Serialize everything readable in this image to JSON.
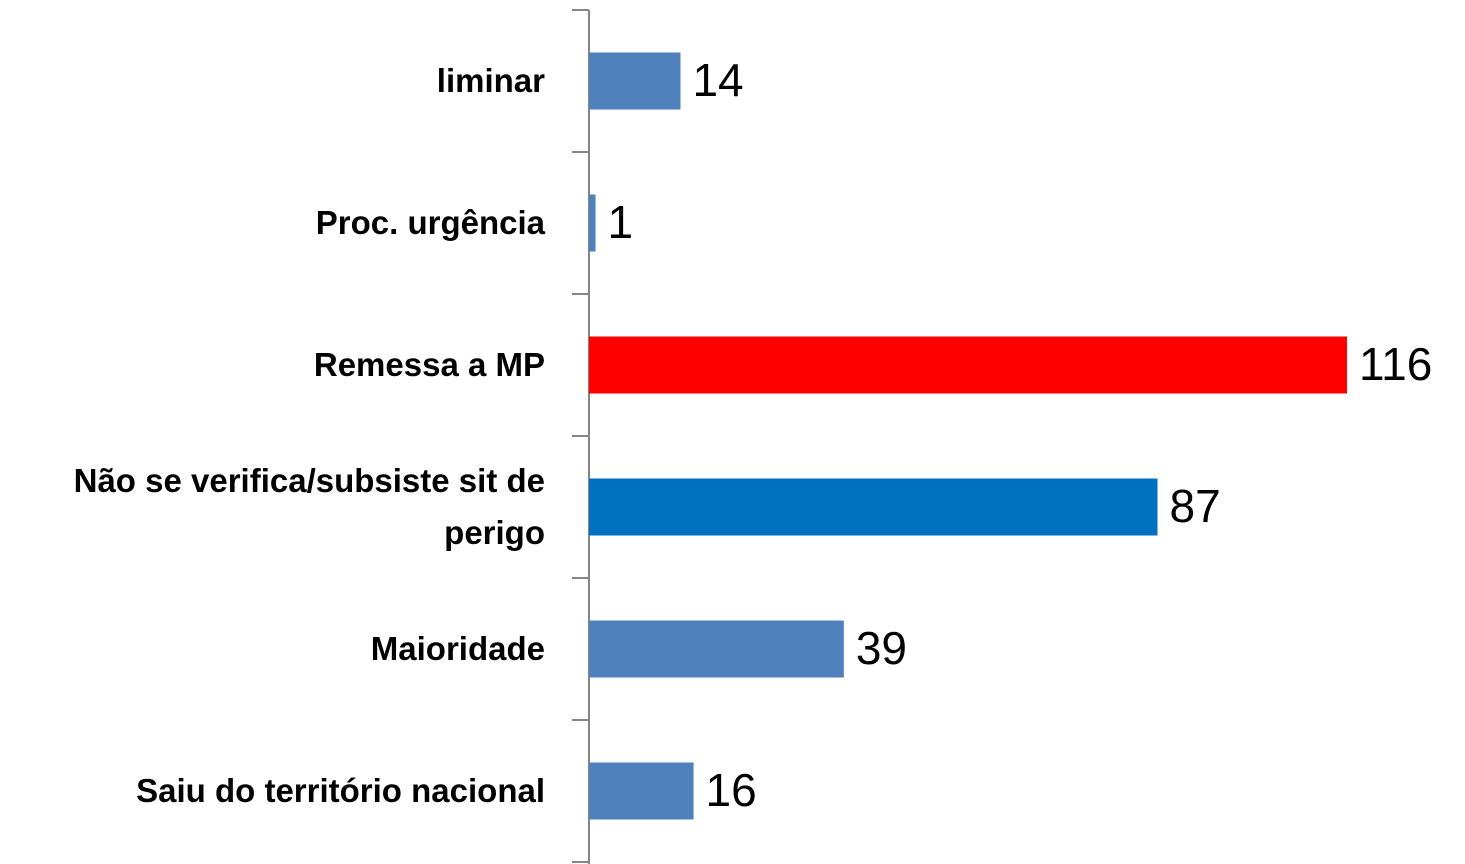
{
  "chart_data": {
    "type": "barh",
    "categories": [
      "liminar",
      "Proc. urgência",
      "Remessa a MP",
      "Não se verifica/subsiste sit de perigo",
      "Maioridade",
      "Saiu do território nacional"
    ],
    "values": [
      14,
      1,
      116,
      87,
      39,
      16
    ],
    "colors": [
      "#4f81bd",
      "#4f81bd",
      "#ff0000",
      "#0070c0",
      "#4f81bd",
      "#4f81bd"
    ]
  }
}
